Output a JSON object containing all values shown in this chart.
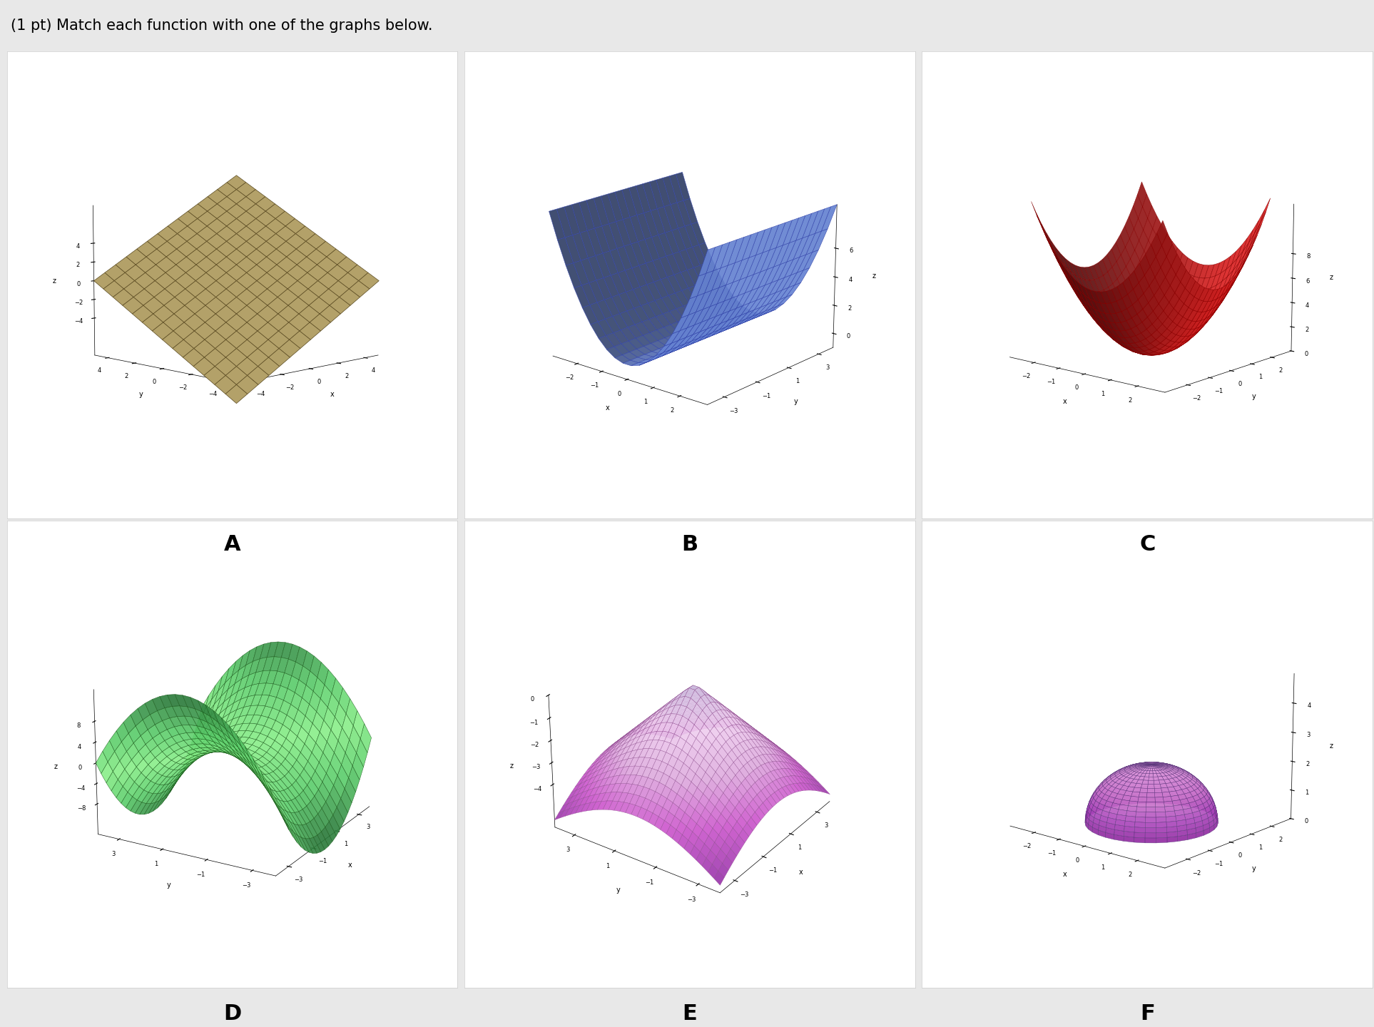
{
  "title_text": "(1 pt) Match each function with one of the graphs below.",
  "background_color": "#e8e8e8",
  "labels": [
    "A",
    "B",
    "C",
    "D",
    "E",
    "F"
  ],
  "colors": {
    "A": "#b5a36a",
    "A_edge": "#5a4a20",
    "B": "#7090e8",
    "B_edge": "#3344aa",
    "C": "#dd2222",
    "C_edge": "#880000",
    "D": "#4aaa5a",
    "D_edge": "#1a5a1a",
    "E_edge": "#884488",
    "F_edge": "#553377"
  },
  "panel_bg": "#ffffff"
}
